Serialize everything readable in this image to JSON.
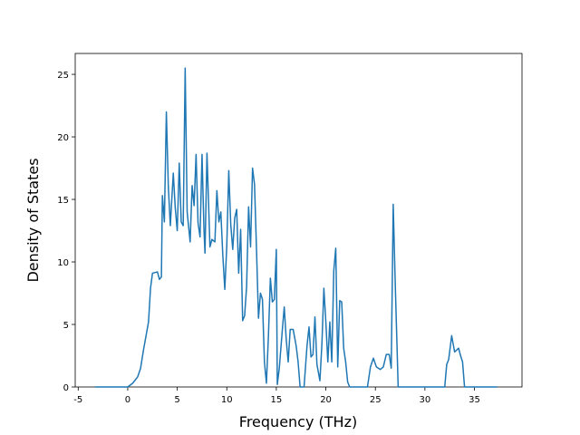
{
  "chart_data": {
    "type": "line",
    "x_label": "Frequency (THz)",
    "y_label": "Density of States",
    "x": [
      -3.3,
      0,
      0.5,
      1,
      1.3,
      1.6,
      2.1,
      2.3,
      2.5,
      3,
      3.2,
      3.4,
      3.5,
      3.7,
      3.9,
      4.1,
      4.3,
      4.6,
      4.8,
      5,
      5.2,
      5.4,
      5.6,
      5.8,
      6.0,
      6.3,
      6.5,
      6.7,
      6.9,
      7.1,
      7.3,
      7.5,
      7.7,
      7.8,
      8.0,
      8.3,
      8.5,
      8.8,
      9.0,
      9.2,
      9.4,
      9.6,
      9.8,
      10.0,
      10.2,
      10.4,
      10.6,
      10.8,
      11.0,
      11.2,
      11.4,
      11.6,
      11.8,
      12.0,
      12.2,
      12.4,
      12.6,
      12.8,
      13.0,
      13.2,
      13.4,
      13.6,
      13.8,
      14.0,
      14.2,
      14.4,
      14.6,
      14.8,
      15.0,
      15.1,
      15.3,
      15.6,
      15.8,
      16.0,
      16.2,
      16.4,
      16.7,
      17.0,
      17.2,
      17.4,
      17.8,
      18.1,
      18.3,
      18.5,
      18.7,
      18.9,
      19.1,
      19.4,
      19.6,
      19.8,
      20.0,
      20.2,
      20.4,
      20.6,
      20.8,
      21.0,
      21.2,
      21.4,
      21.6,
      21.8,
      22.0,
      22.2,
      22.4,
      24.2,
      24.5,
      24.8,
      25.1,
      25.5,
      25.8,
      26.1,
      26.4,
      26.6,
      26.8,
      27.0,
      27.3,
      32,
      32.2,
      32.4,
      32.7,
      33.0,
      33.4,
      33.6,
      33.8,
      34.0,
      37.3
    ],
    "series": [
      {
        "color": "#1f77b4",
        "values": [
          0,
          0,
          0.3,
          0.8,
          1.5,
          3,
          5.2,
          7.9,
          9.1,
          9.2,
          8.6,
          8.8,
          15.3,
          13.2,
          22,
          16,
          12.9,
          17.1,
          14.3,
          12.5,
          17.9,
          13.2,
          12.9,
          25.5,
          14,
          11.6,
          16.1,
          14.5,
          18.6,
          13.1,
          12,
          18.6,
          12.5,
          10.7,
          18.7,
          11.2,
          11.8,
          11.6,
          15.7,
          13.2,
          14,
          10.5,
          7.8,
          11.3,
          17.3,
          13,
          11,
          13.5,
          14.2,
          9.1,
          12.6,
          5.3,
          5.7,
          8,
          14.4,
          11.2,
          17.5,
          16.2,
          11,
          5.5,
          7.5,
          7,
          2,
          0.3,
          4,
          8.7,
          6.8,
          7,
          11,
          0.2,
          1.5,
          4.5,
          6.4,
          3.8,
          2,
          4.6,
          4.6,
          3.3,
          2,
          0,
          0,
          3.3,
          4.8,
          2.4,
          2.6,
          5.6,
          1.8,
          0.5,
          3.4,
          7.9,
          5.2,
          2,
          5.2,
          2,
          9.3,
          11.1,
          1.6,
          6.9,
          6.8,
          3.1,
          2,
          0.4,
          0,
          0,
          1.6,
          2.3,
          1.6,
          1.4,
          1.6,
          2.6,
          2.6,
          1.5,
          14.6,
          8.4,
          0,
          0,
          1.8,
          2.2,
          4.1,
          2.8,
          3.1,
          2.5,
          2,
          0,
          0
        ]
      }
    ],
    "xlim": [
      -5.3,
      39.8
    ],
    "ylim": [
      0,
      26.67
    ],
    "xticks": [
      -5,
      0,
      5,
      10,
      15,
      20,
      25,
      30,
      35
    ],
    "yticks": [
      0,
      5,
      10,
      15,
      20,
      25
    ]
  }
}
